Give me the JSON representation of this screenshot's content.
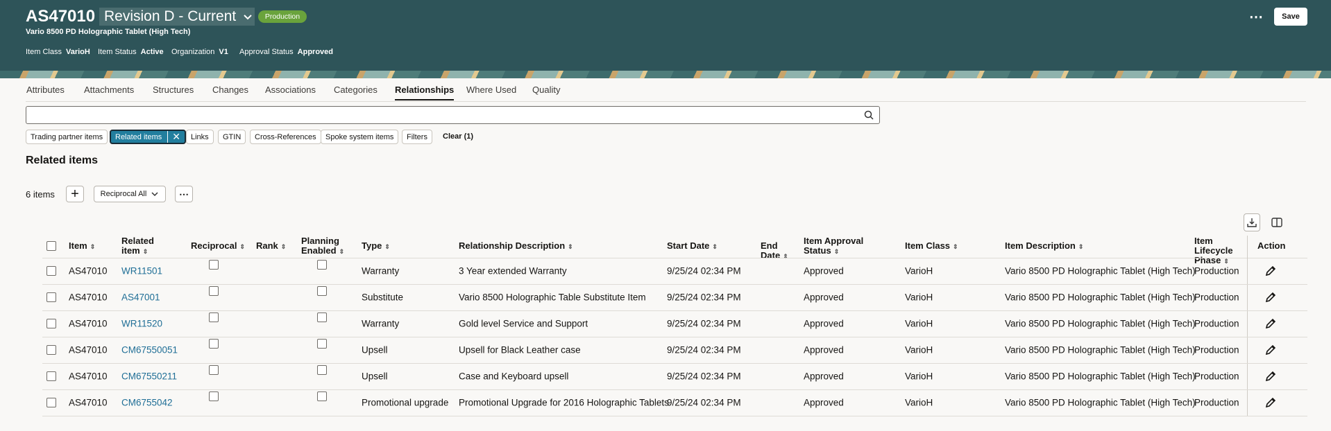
{
  "header": {
    "title": "AS47010",
    "revision": "Revision D - Current",
    "status": "Production",
    "subtitle": "Vario 8500 PD Holographic Tablet (High Tech)",
    "attributes": [
      {
        "label": "Item Class",
        "value": "VarioH"
      },
      {
        "label": "Item Status",
        "value": "Active"
      },
      {
        "label": "Organization",
        "value": "V1"
      },
      {
        "label": "Approval Status",
        "value": "Approved"
      }
    ],
    "save": "Save"
  },
  "tabs": {
    "items": [
      "Attributes",
      "Attachments",
      "Structures",
      "Changes",
      "Associations",
      "Categories",
      "Relationships",
      "Where Used",
      "Quality"
    ],
    "active": 6
  },
  "filters": {
    "chips": [
      "Trading partner items",
      "Related items",
      "Links",
      "GTIN",
      "Cross-References",
      "Spoke system items",
      "Filters"
    ],
    "selected": 1,
    "clear": "Clear (1)"
  },
  "section": {
    "title": "Related items",
    "count": "6 items",
    "reciprocal": "Reciprocal All"
  },
  "table": {
    "columns": [
      "Item",
      "Related item",
      "Reciprocal",
      "Rank",
      "Planning Enabled",
      "Type",
      "Relationship Description",
      "Start Date",
      "End Date",
      "Item Approval Status",
      "Item Class",
      "Item Description",
      "Item Lifecycle Phase",
      "Action"
    ],
    "rows": [
      [
        "AS47010",
        "WR11501",
        "Warranty",
        "3 Year extended Warranty",
        "9/25/24 02:34 PM",
        "Approved",
        "VarioH",
        "Vario 8500 PD Holographic Tablet (High Tech)",
        "Production"
      ],
      [
        "AS47010",
        "AS47001",
        "Substitute",
        "Vario 8500 Holographic Table Substitute Item",
        "9/25/24 02:34 PM",
        "Approved",
        "VarioH",
        "Vario 8500 PD Holographic Tablet (High Tech)",
        "Production"
      ],
      [
        "AS47010",
        "WR11520",
        "Warranty",
        "Gold level Service and Support",
        "9/25/24 02:34 PM",
        "Approved",
        "VarioH",
        "Vario 8500 PD Holographic Tablet (High Tech)",
        "Production"
      ],
      [
        "AS47010",
        "CM67550051",
        "Upsell",
        "Upsell for Black Leather case",
        "9/25/24 02:34 PM",
        "Approved",
        "VarioH",
        "Vario 8500 PD Holographic Tablet (High Tech)",
        "Production"
      ],
      [
        "AS47010",
        "CM67550211",
        "Upsell",
        "Case and Keyboard upsell",
        "9/25/24 02:34 PM",
        "Approved",
        "VarioH",
        "Vario 8500 PD Holographic Tablet (High Tech)",
        "Production"
      ],
      [
        "AS47010",
        "CM6755042",
        "Promotional upgrade",
        "Promotional Upgrade for 2016 Holographic Tablets",
        "9/25/24 02:34 PM",
        "Approved",
        "VarioH",
        "Vario 8500 PD Holographic Tablet (High Tech)",
        "Production"
      ]
    ]
  }
}
